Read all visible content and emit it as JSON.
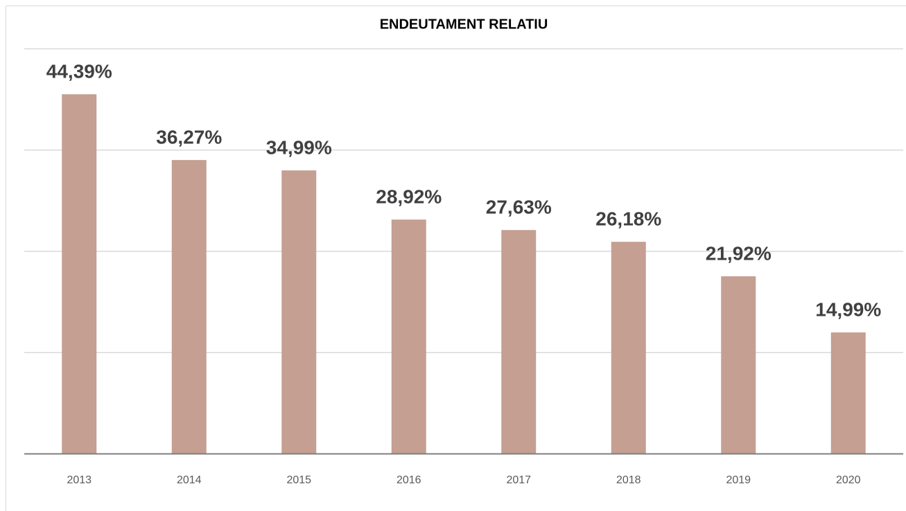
{
  "chart_data": {
    "type": "bar",
    "title": "ENDEUTAMENT RELATIU",
    "categories": [
      "2013",
      "2014",
      "2015",
      "2016",
      "2017",
      "2018",
      "2019",
      "2020"
    ],
    "values": [
      44.39,
      36.27,
      34.99,
      28.92,
      27.63,
      26.18,
      21.92,
      14.99
    ],
    "value_labels": [
      "44,39%",
      "36,27%",
      "34,99%",
      "28,92%",
      "27,63%",
      "26,18%",
      "21,92%",
      "14,99%"
    ],
    "color": "#c49f92",
    "ylim": [
      0,
      50
    ],
    "yticks": [
      0,
      12.5,
      25,
      37.5,
      50
    ],
    "grid": true
  }
}
